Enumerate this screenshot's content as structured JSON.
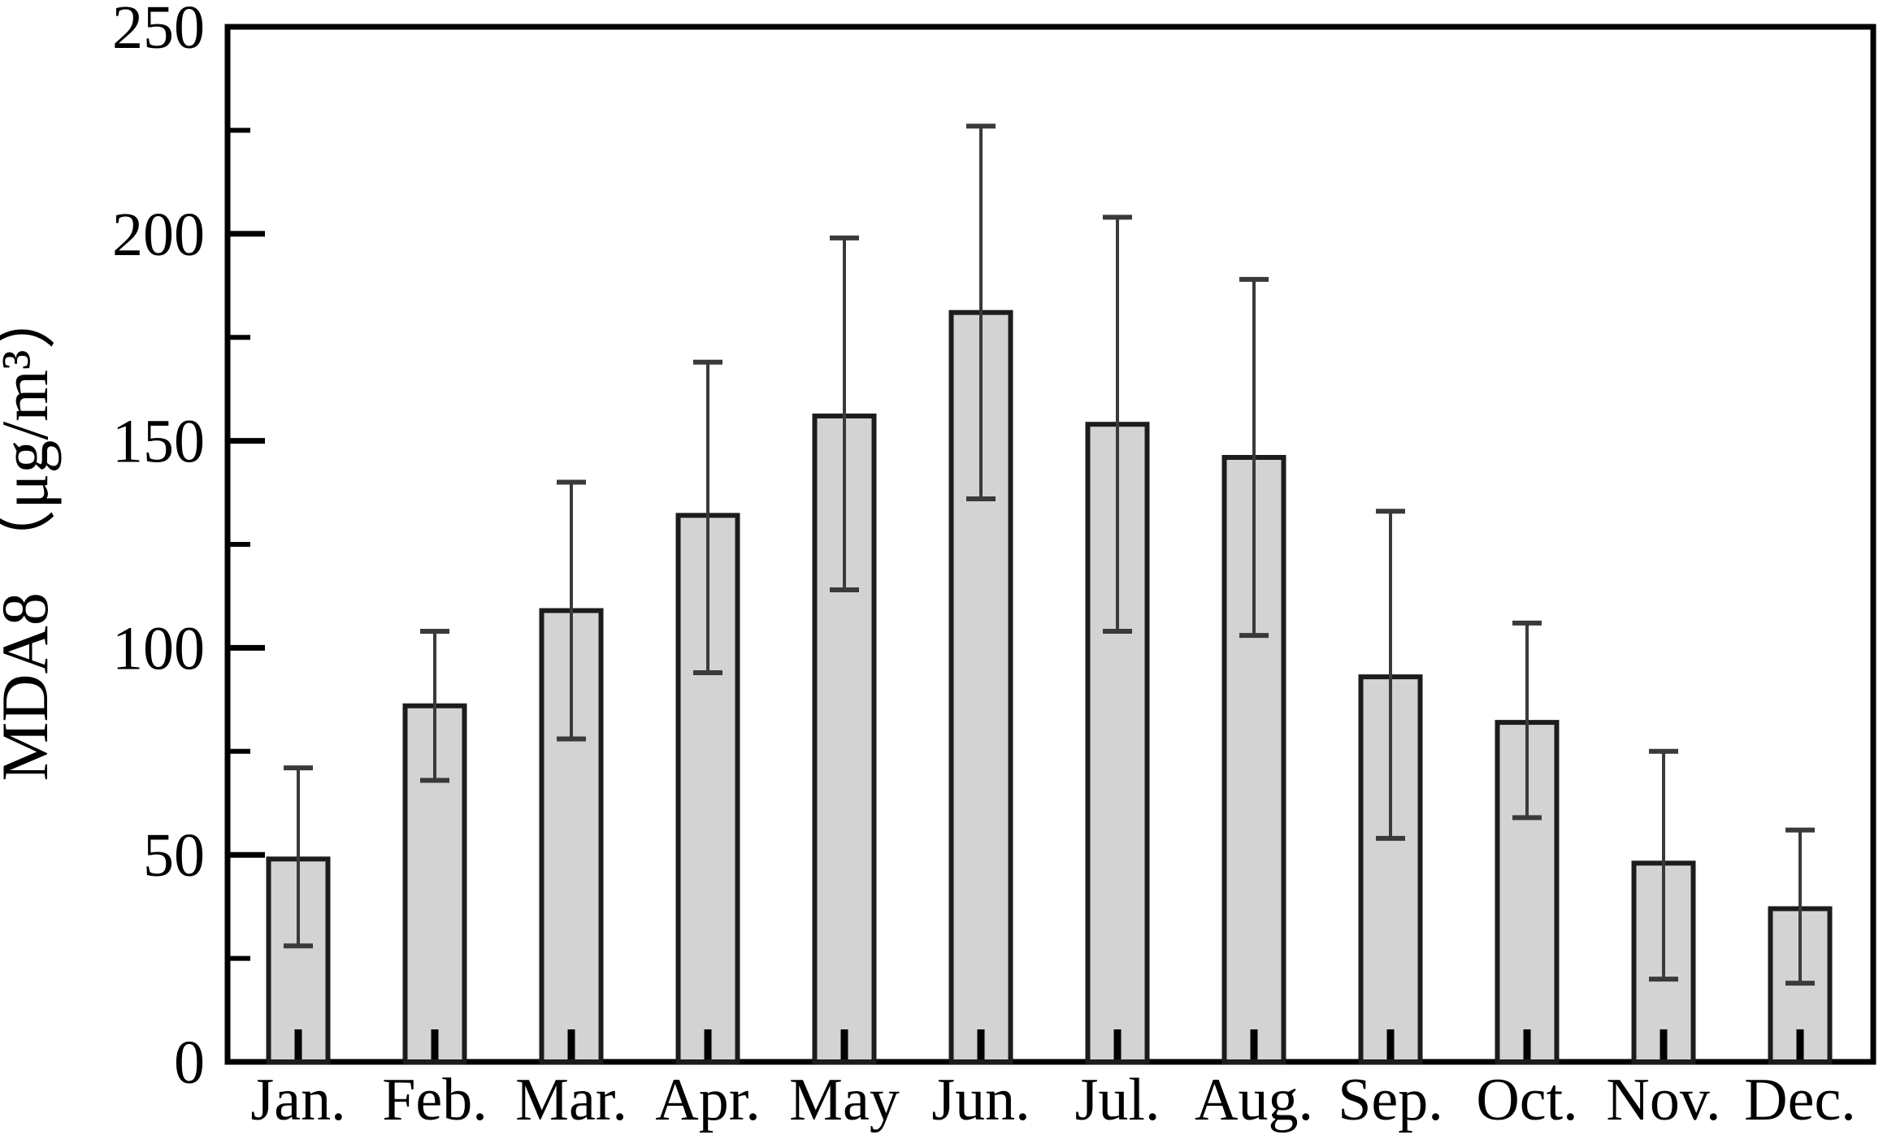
{
  "page": {
    "background": "#ffffff"
  },
  "chart_data": {
    "type": "bar",
    "title": "",
    "xlabel": "",
    "ylabel": "MDA8 （μg/m³）",
    "ylim": [
      0,
      250
    ],
    "yticks": [
      0,
      50,
      100,
      150,
      200,
      250
    ],
    "y_minor_step": 25,
    "grid": false,
    "frame": "box",
    "legend": "none",
    "categories": [
      "Jan.",
      "Feb.",
      "Mar.",
      "Apr.",
      "May",
      "Jun.",
      "Jul.",
      "Aug.",
      "Sep.",
      "Oct.",
      "Nov.",
      "Dec."
    ],
    "series": [
      {
        "name": "MDA8",
        "values": [
          49,
          86,
          109,
          132,
          156,
          181,
          154,
          146,
          93,
          82,
          48,
          37
        ],
        "error_low": [
          28,
          68,
          78,
          94,
          114,
          136,
          104,
          103,
          54,
          59,
          20,
          19
        ],
        "error_high": [
          71,
          104,
          140,
          169,
          199,
          226,
          204,
          189,
          133,
          106,
          75,
          56
        ]
      }
    ],
    "colors": {
      "bar_fill": "#d3d3d3",
      "bar_border": "#1c1c1c",
      "error_bar": "#3a3a3a",
      "axis": "#000000",
      "text": "#000000"
    }
  }
}
